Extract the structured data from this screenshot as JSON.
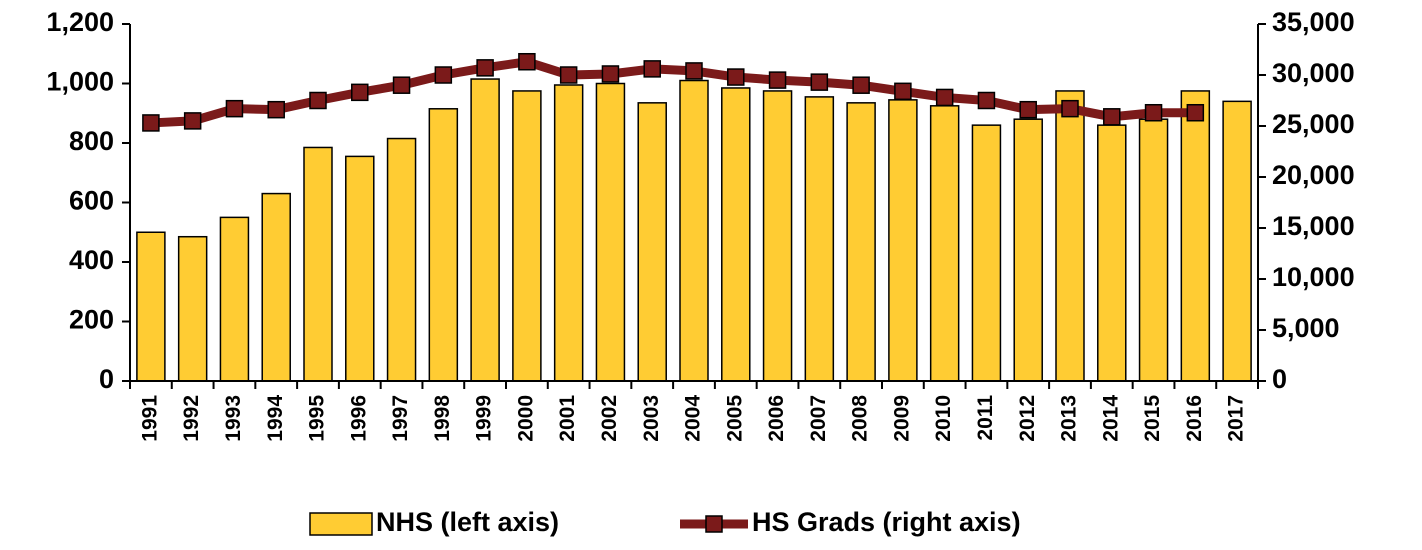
{
  "chart_data": {
    "type": "bar",
    "categories": [
      "1991",
      "1992",
      "1993",
      "1994",
      "1995",
      "1996",
      "1997",
      "1998",
      "1999",
      "2000",
      "2001",
      "2002",
      "2003",
      "2004",
      "2005",
      "2006",
      "2007",
      "2008",
      "2009",
      "2010",
      "2011",
      "2012",
      "2013",
      "2014",
      "2015",
      "2016",
      "2017"
    ],
    "series": [
      {
        "name": "NHS (left axis)",
        "type": "bar",
        "color": "#FFCC33",
        "values": [
          500,
          485,
          550,
          630,
          785,
          755,
          815,
          915,
          1015,
          975,
          995,
          1000,
          935,
          1010,
          985,
          975,
          955,
          935,
          945,
          925,
          860,
          880,
          975,
          860,
          880,
          975,
          940
        ]
      },
      {
        "name": "HS Grads (right axis)",
        "type": "line",
        "color": "#7B1A1A",
        "axis": "y2",
        "values": [
          25300,
          25500,
          26700,
          26600,
          27500,
          28300,
          29000,
          30000,
          30700,
          31300,
          30000,
          30100,
          30600,
          30400,
          29800,
          29500,
          29300,
          29000,
          28400,
          27800,
          27500,
          26600,
          26700,
          25900,
          26300,
          26300,
          null
        ]
      }
    ],
    "ylim": [
      0,
      1200
    ],
    "yticks": [
      0,
      200,
      400,
      600,
      800,
      {
        "value": 1000,
        "label": "1,000"
      },
      {
        "value": 1200,
        "label": "1,200"
      }
    ],
    "y2lim": [
      0,
      35000
    ],
    "y2ticks": [
      0,
      {
        "value": 5000,
        "label": "5,000"
      },
      {
        "value": 10000,
        "label": "10,000"
      },
      {
        "value": 15000,
        "label": "15,000"
      },
      {
        "value": 20000,
        "label": "20,000"
      },
      {
        "value": 25000,
        "label": "25,000"
      },
      {
        "value": 30000,
        "label": "30,000"
      },
      {
        "value": 35000,
        "label": "35,000"
      }
    ],
    "legend": "bottom"
  }
}
